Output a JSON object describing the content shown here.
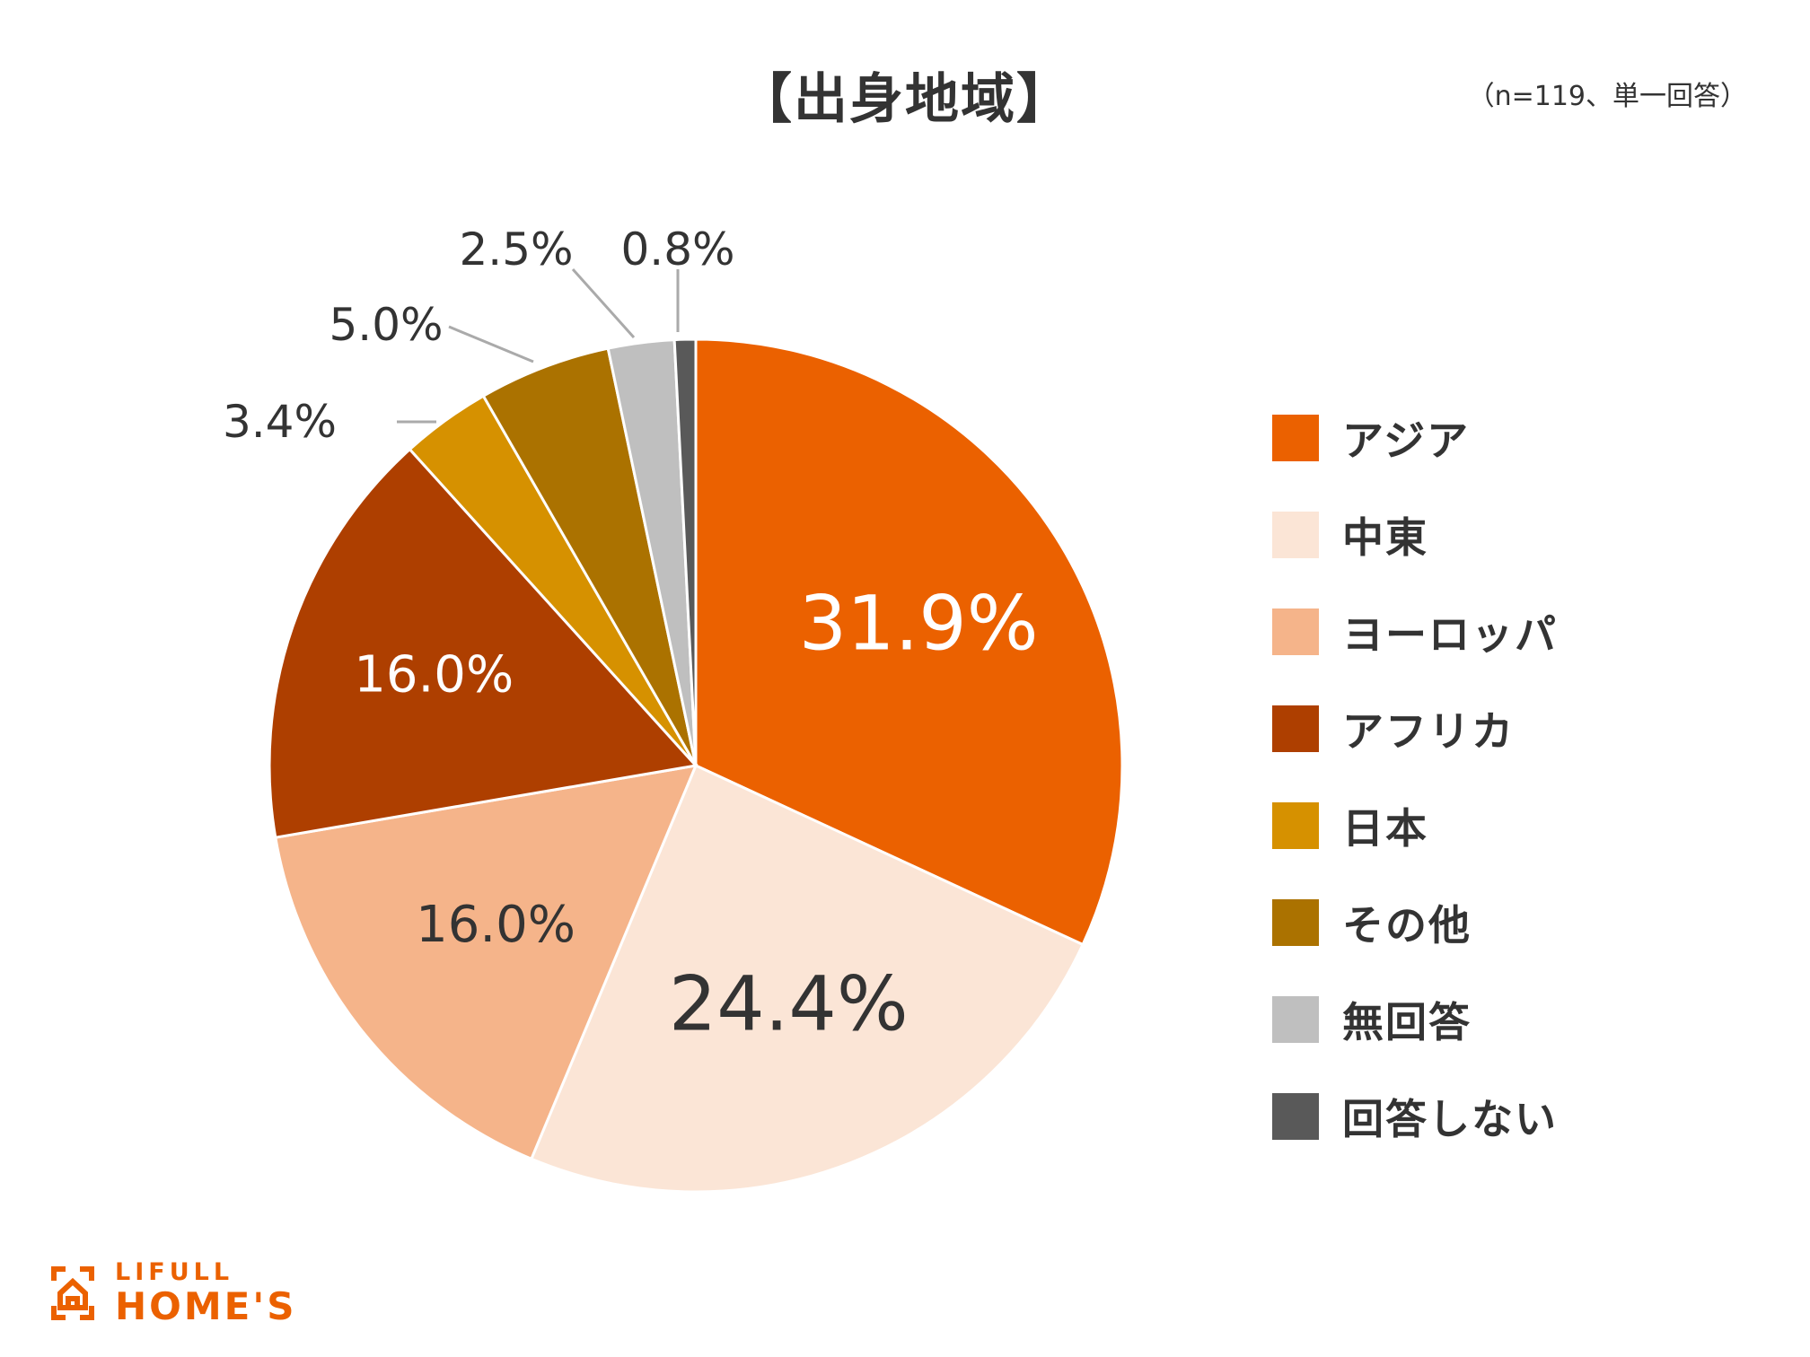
{
  "title": "【出身地域】",
  "note": "（n=119、単一回答）",
  "chart_data": {
    "type": "pie",
    "categories": [
      "アジア",
      "中東",
      "ヨーロッパ",
      "アフリカ",
      "日本",
      "その他",
      "無回答",
      "回答しない"
    ],
    "values": [
      31.9,
      24.4,
      16.0,
      16.0,
      3.4,
      5.0,
      2.5,
      0.8
    ],
    "labels": [
      "31.9%",
      "24.4%",
      "16.0%",
      "16.0%",
      "3.4%",
      "5.0%",
      "2.5%",
      "0.8%"
    ],
    "colors": [
      "#eb6100",
      "#fbe5d6",
      "#f5b48a",
      "#ae3f00",
      "#d69100",
      "#ab7200",
      "#bfbfbf",
      "#595959"
    ],
    "label_colors": [
      "#ffffff",
      "#333333",
      "#333333",
      "#ffffff",
      "#333333",
      "#333333",
      "#333333",
      "#333333"
    ],
    "start_angle": "12 o'clock",
    "direction": "clockwise"
  },
  "legend": [
    {
      "label": "アジア",
      "color": "#eb6100"
    },
    {
      "label": "中東",
      "color": "#fbe5d6"
    },
    {
      "label": "ヨーロッパ",
      "color": "#f5b48a"
    },
    {
      "label": "アフリカ",
      "color": "#ae3f00"
    },
    {
      "label": "日本",
      "color": "#d69100"
    },
    {
      "label": "その他",
      "color": "#ab7200"
    },
    {
      "label": "無回答",
      "color": "#bfbfbf"
    },
    {
      "label": "回答しない",
      "color": "#595959"
    }
  ],
  "logo": {
    "line1": "LIFULL",
    "line2": "HOME'S",
    "color": "#eb6100"
  }
}
